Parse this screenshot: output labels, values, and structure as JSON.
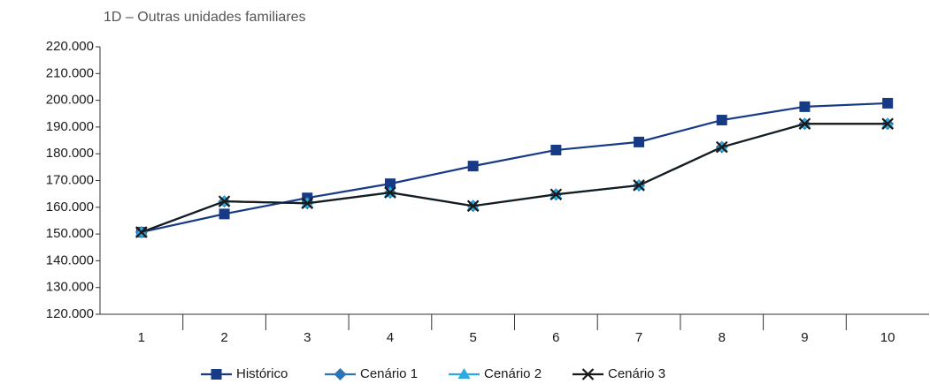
{
  "chart_data": {
    "type": "line",
    "title": "1D – Outras unidades familiares",
    "categories": [
      "1",
      "2",
      "3",
      "4",
      "5",
      "6",
      "7",
      "8",
      "9",
      "10"
    ],
    "ylim": [
      120000,
      220000
    ],
    "yticks": [
      {
        "value": 120000,
        "label": "120.000"
      },
      {
        "value": 130000,
        "label": "130.000"
      },
      {
        "value": 140000,
        "label": "140.000"
      },
      {
        "value": 150000,
        "label": "150.000"
      },
      {
        "value": 160000,
        "label": "160.000"
      },
      {
        "value": 170000,
        "label": "170.000"
      },
      {
        "value": 180000,
        "label": "180.000"
      },
      {
        "value": 190000,
        "label": "190.000"
      },
      {
        "value": 200000,
        "label": "200.000"
      },
      {
        "value": 210000,
        "label": "210.000"
      },
      {
        "value": 220000,
        "label": "220.000"
      }
    ],
    "grid": false,
    "legend": "bottom",
    "series": [
      {
        "name": "Histórico",
        "color": "#173a86",
        "marker": "square",
        "values": [
          150700,
          157500,
          163500,
          168800,
          175400,
          181400,
          184400,
          192600,
          197600,
          198900
        ]
      },
      {
        "name": "Cenário 1",
        "color": "#2e75b6",
        "marker": "diamond",
        "values": [
          150700,
          162200,
          161500,
          165500,
          160500,
          164800,
          168200,
          182500,
          191200,
          191200
        ]
      },
      {
        "name": "Cenário 2",
        "color": "#29abe2",
        "marker": "triangle",
        "values": [
          150700,
          162200,
          161500,
          165500,
          160500,
          164800,
          168200,
          182500,
          191200,
          191200
        ]
      },
      {
        "name": "Cenário 3",
        "color": "#1a1a1a",
        "marker": "x",
        "values": [
          150700,
          162200,
          161500,
          165500,
          160500,
          164800,
          168200,
          182500,
          191200,
          191200
        ]
      }
    ]
  }
}
